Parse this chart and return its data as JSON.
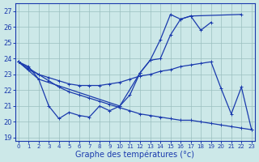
{
  "xlabel": "Graphe des températures (°c)",
  "background_color": "#cce8e8",
  "grid_color": "#9bbfbf",
  "line_color": "#1a3aad",
  "ylim": [
    18.8,
    27.5
  ],
  "yticks": [
    19,
    20,
    21,
    22,
    23,
    24,
    25,
    26,
    27
  ],
  "xlim": [
    -0.3,
    23.3
  ],
  "line1": {
    "x": [
      0,
      1,
      2,
      3,
      4,
      5,
      6,
      7,
      8,
      9,
      10,
      11,
      12,
      13,
      14,
      15,
      16,
      17,
      18,
      19
    ],
    "y": [
      23.8,
      23.5,
      22.7,
      21.0,
      20.2,
      20.6,
      20.4,
      20.3,
      21.0,
      20.7,
      21.0,
      21.7,
      23.1,
      23.9,
      25.2,
      26.8,
      26.5,
      26.7,
      25.8,
      26.3
    ]
  },
  "line2": {
    "x": [
      0,
      2,
      10,
      12,
      13,
      14,
      15,
      16,
      17,
      22
    ],
    "y": [
      23.8,
      22.7,
      21.0,
      23.1,
      23.9,
      24.0,
      25.5,
      26.5,
      26.7,
      26.8
    ]
  },
  "line3": {
    "x": [
      0,
      1,
      2,
      3,
      4,
      5,
      6,
      7,
      8,
      9,
      10,
      11,
      12,
      13,
      14,
      15,
      16,
      17,
      18,
      19,
      20,
      21,
      22,
      23
    ],
    "y": [
      23.8,
      23.3,
      23.0,
      22.8,
      22.6,
      22.4,
      22.3,
      22.3,
      22.3,
      22.4,
      22.5,
      22.7,
      22.9,
      23.0,
      23.2,
      23.3,
      23.5,
      23.6,
      23.7,
      23.8,
      22.1,
      20.5,
      22.2,
      19.5
    ]
  },
  "line4": {
    "x": [
      0,
      1,
      2,
      3,
      4,
      5,
      6,
      7,
      8,
      9,
      10,
      11,
      12,
      13,
      14,
      15,
      16,
      17,
      18,
      19,
      20,
      21,
      22,
      23
    ],
    "y": [
      23.8,
      23.4,
      23.0,
      22.6,
      22.2,
      21.9,
      21.7,
      21.5,
      21.3,
      21.1,
      20.9,
      20.7,
      20.5,
      20.4,
      20.3,
      20.2,
      20.1,
      20.1,
      20.0,
      19.9,
      19.8,
      19.7,
      19.6,
      19.5
    ]
  }
}
